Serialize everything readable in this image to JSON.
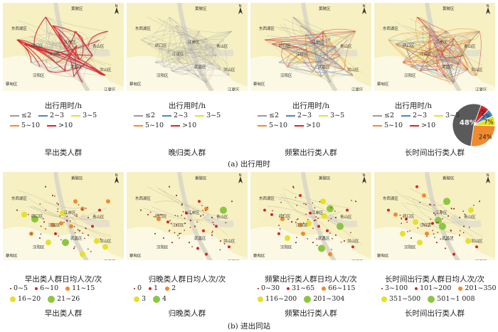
{
  "section_a_label": "(a) 出行用时",
  "section_b_label": "(b) 进出同站",
  "map_labels": {
    "huangpi": "黄陂区",
    "dongxihu": "东西湖区",
    "qiaokou": "硚口区",
    "jiangan": "江岸区",
    "jianghan": "江汉区",
    "wuchang": "武昌区",
    "qingshan": "青山区",
    "hongshan": "洪山区",
    "hanyang": "汉阳区",
    "caidian": "蔡甸区",
    "jiangxia": "江夏区"
  },
  "north_symbol": "N",
  "chart_data": {
    "type": "map",
    "top_row": {
      "legend_title": "出行用时/h",
      "legend_items": [
        {
          "label": "≤2",
          "color": "#9a9a9a"
        },
        {
          "label": "2~3",
          "color": "#4a86c8"
        },
        {
          "label": "3~5",
          "color": "#e6e02a"
        },
        {
          "label": "5~10",
          "color": "#f08a30"
        },
        {
          "label": ">10",
          "color": "#d8232a"
        }
      ],
      "panels": [
        {
          "caption": "早出类人群"
        },
        {
          "caption": "晚归类人群"
        },
        {
          "caption": "频繁出行类人群"
        },
        {
          "caption": "长时间出行类人群"
        }
      ],
      "pie": {
        "slices": [
          {
            "label": "6%",
            "value": 6,
            "color": "#d8232a"
          },
          {
            "label": "5%",
            "value": 5,
            "color": "#4a86c8"
          },
          {
            "label": "7%",
            "value": 7,
            "color": "#e6e02a"
          },
          {
            "label": "24%",
            "value": 24,
            "color": "#f08a30"
          },
          {
            "label": "48%",
            "value": 48,
            "color": "#5a5a5a"
          }
        ]
      }
    },
    "bottom_row": [
      {
        "legend_title": "早出类人群日均人次/次",
        "caption": "早出类人群",
        "classes": [
          {
            "label": "0~5",
            "color": "#8b1a1a",
            "size": 2
          },
          {
            "label": "6~10",
            "color": "#d8232a",
            "size": 4
          },
          {
            "label": "11~15",
            "color": "#f08a30",
            "size": 6
          },
          {
            "label": "16~20",
            "color": "#e6e02a",
            "size": 8
          },
          {
            "label": "21~26",
            "color": "#8cc63f",
            "size": 10
          }
        ]
      },
      {
        "legend_title": "归晚类人群日均人次/次",
        "caption": "归晚类人群",
        "classes": [
          {
            "label": "0",
            "color": "#8b1a1a",
            "size": 2
          },
          {
            "label": "1",
            "color": "#d8232a",
            "size": 4
          },
          {
            "label": "2",
            "color": "#f08a30",
            "size": 6
          },
          {
            "label": "3",
            "color": "#e6e02a",
            "size": 8
          },
          {
            "label": "4",
            "color": "#8cc63f",
            "size": 10
          }
        ]
      },
      {
        "legend_title": "频繁出行类人群日均人次/次",
        "caption": "频繁出行类人群",
        "classes": [
          {
            "label": "0~30",
            "color": "#8b1a1a",
            "size": 2
          },
          {
            "label": "31~65",
            "color": "#d8232a",
            "size": 4
          },
          {
            "label": "66~115",
            "color": "#f08a30",
            "size": 6
          },
          {
            "label": "116~200",
            "color": "#e6e02a",
            "size": 8
          },
          {
            "label": "201~304",
            "color": "#8cc63f",
            "size": 10
          }
        ]
      },
      {
        "legend_title": "长时间出行类人群日均人次/次",
        "caption": "长时间出行类人群",
        "classes": [
          {
            "label": "3~100",
            "color": "#8b1a1a",
            "size": 2
          },
          {
            "label": "101~200",
            "color": "#d8232a",
            "size": 4
          },
          {
            "label": "201~350",
            "color": "#f08a30",
            "size": 6
          },
          {
            "label": "351~500",
            "color": "#e6e02a",
            "size": 8
          },
          {
            "label": "501~1 008",
            "color": "#8cc63f",
            "size": 10
          }
        ]
      }
    ]
  }
}
